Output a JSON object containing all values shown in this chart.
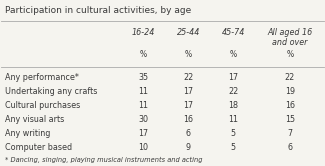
{
  "title": "Participation in cultural activities, by age",
  "columns": [
    "16-24",
    "25-44",
    "45-74",
    "All aged 16\nand over"
  ],
  "col_unit": [
    "%",
    "%",
    "%",
    "%"
  ],
  "rows": [
    [
      "Any performance*",
      35,
      22,
      17,
      22
    ],
    [
      "Undertaking any crafts",
      11,
      17,
      22,
      19
    ],
    [
      "Cultural purchases",
      11,
      17,
      18,
      16
    ],
    [
      "Any visual arts",
      30,
      16,
      11,
      15
    ],
    [
      "Any writing",
      17,
      6,
      5,
      7
    ],
    [
      "Computer based",
      10,
      9,
      5,
      6
    ]
  ],
  "footnote": "* Dancing, singing, playing musical instruments and acting",
  "bg_color": "#f5f4ef",
  "title_color": "#3a3a3a",
  "header_color": "#3a3a3a",
  "row_label_color": "#3a3a3a",
  "cell_color": "#3a3a3a",
  "line_color": "#aaaaaa",
  "footnote_color": "#3a3a3a"
}
